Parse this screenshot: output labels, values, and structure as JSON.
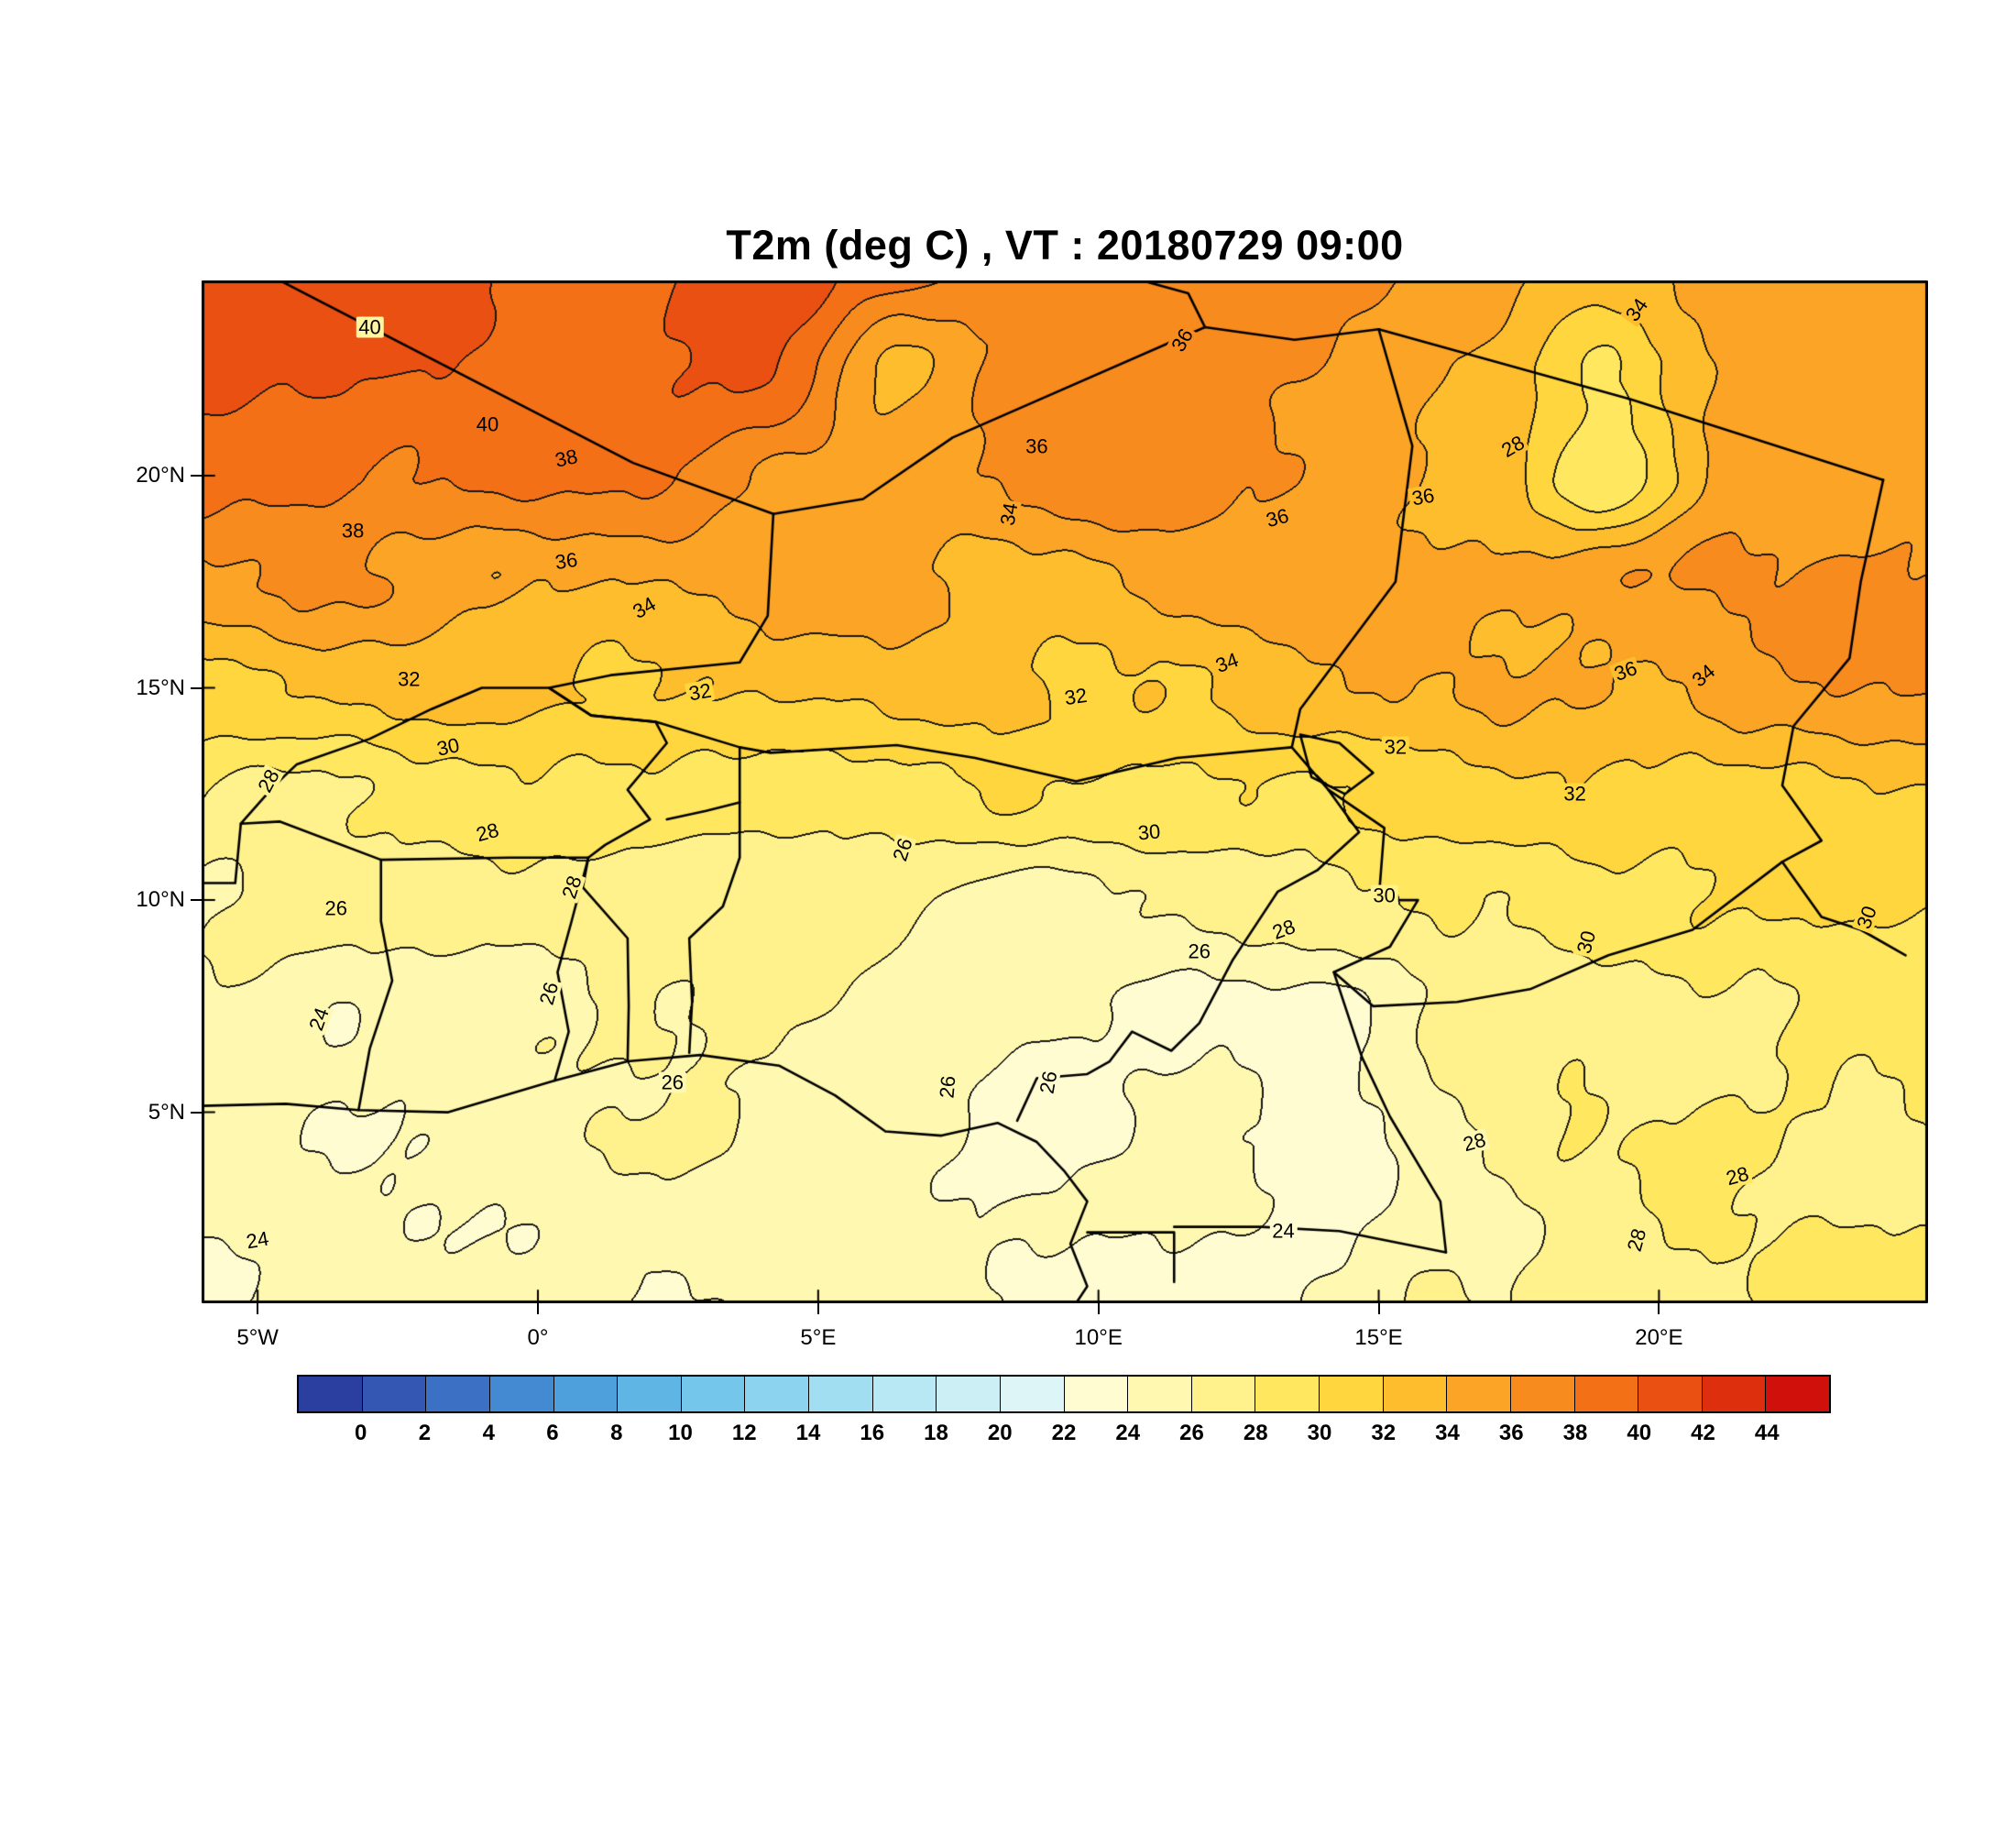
{
  "title": "T2m (deg C) ,  VT : 20180729  09:00",
  "page_background": "#ffffff",
  "map": {
    "frame_color": "#000000",
    "lat_ticks": [
      {
        "label": "5°N",
        "value": 5
      },
      {
        "label": "10°N",
        "value": 10
      },
      {
        "label": "15°N",
        "value": 15
      },
      {
        "label": "20°N",
        "value": 20
      }
    ],
    "lon_ticks": [
      {
        "label": "5°W",
        "value": -5
      },
      {
        "label": "0°",
        "value": 0
      },
      {
        "label": "5°E",
        "value": 5
      },
      {
        "label": "10°E",
        "value": 10
      },
      {
        "label": "15°E",
        "value": 15
      },
      {
        "label": "20°E",
        "value": 20
      }
    ],
    "borders": [
      {
        "name": "coastline-gulf-of-guinea",
        "points": [
          [
            -6,
            5.15
          ],
          [
            -4.5,
            5.2
          ],
          [
            -3.2,
            5.05
          ],
          [
            -1.6,
            5.0
          ],
          [
            0.3,
            5.75
          ],
          [
            1.6,
            6.2
          ],
          [
            2.9,
            6.35
          ],
          [
            4.3,
            6.1
          ],
          [
            5.3,
            5.4
          ],
          [
            6.2,
            4.55
          ],
          [
            7.2,
            4.45
          ],
          [
            8.2,
            4.75
          ],
          [
            8.9,
            4.3
          ],
          [
            9.4,
            3.6
          ],
          [
            9.8,
            2.9
          ],
          [
            9.5,
            1.9
          ],
          [
            9.8,
            0.9
          ],
          [
            9.6,
            0.5
          ]
        ]
      },
      {
        "name": "algeria-mali",
        "points": [
          [
            -4.9,
            24.8
          ],
          [
            1.7,
            20.3
          ],
          [
            4.2,
            19.1
          ]
        ]
      },
      {
        "name": "algeria-niger",
        "points": [
          [
            4.2,
            19.1
          ],
          [
            5.8,
            19.45
          ],
          [
            7.4,
            20.9
          ],
          [
            11.9,
            23.5
          ]
        ]
      },
      {
        "name": "niger-libya",
        "points": [
          [
            11.9,
            23.5
          ],
          [
            13.5,
            23.2
          ],
          [
            15.0,
            23.45
          ]
        ]
      },
      {
        "name": "algeria-libya",
        "points": [
          [
            9.8,
            24.95
          ],
          [
            11.6,
            24.3
          ],
          [
            11.9,
            23.5
          ]
        ]
      },
      {
        "name": "libya-chad",
        "points": [
          [
            15.0,
            23.45
          ],
          [
            19.5,
            21.8
          ],
          [
            24.0,
            19.9
          ]
        ]
      },
      {
        "name": "niger-chad",
        "points": [
          [
            15.0,
            23.45
          ],
          [
            15.6,
            20.7
          ],
          [
            15.3,
            17.5
          ],
          [
            13.6,
            14.5
          ],
          [
            13.45,
            13.6
          ]
        ]
      },
      {
        "name": "mali-niger",
        "points": [
          [
            4.2,
            19.1
          ],
          [
            4.1,
            16.7
          ],
          [
            3.6,
            15.6
          ],
          [
            1.3,
            15.3
          ],
          [
            0.2,
            15.0
          ],
          [
            0.95,
            14.35
          ]
        ]
      },
      {
        "name": "niger-nigeria",
        "points": [
          [
            0.95,
            14.35
          ],
          [
            2.1,
            14.2
          ],
          [
            3.6,
            13.6
          ],
          [
            4.15,
            13.47
          ],
          [
            6.4,
            13.65
          ],
          [
            7.8,
            13.35
          ],
          [
            9.6,
            12.8
          ],
          [
            11.4,
            13.35
          ],
          [
            13.45,
            13.6
          ]
        ]
      },
      {
        "name": "nigeria-cameroon",
        "points": [
          [
            14.1,
            12.6
          ],
          [
            14.65,
            11.6
          ],
          [
            13.9,
            10.7
          ],
          [
            13.2,
            10.2
          ],
          [
            12.8,
            9.4
          ],
          [
            12.4,
            8.6
          ],
          [
            11.8,
            7.1
          ],
          [
            11.3,
            6.45
          ],
          [
            10.6,
            6.9
          ],
          [
            10.2,
            6.2
          ],
          [
            9.8,
            5.9
          ],
          [
            8.9,
            5.8
          ],
          [
            8.55,
            4.8
          ]
        ]
      },
      {
        "name": "lake-chad",
        "points": [
          [
            13.6,
            13.9
          ],
          [
            14.3,
            13.7
          ],
          [
            14.9,
            13.0
          ],
          [
            14.4,
            12.5
          ],
          [
            13.8,
            12.9
          ],
          [
            13.6,
            13.9
          ]
        ]
      },
      {
        "name": "chad-southern",
        "points": [
          [
            13.45,
            13.6
          ],
          [
            14.1,
            12.6
          ],
          [
            15.1,
            11.7
          ],
          [
            15.0,
            10.0
          ],
          [
            15.7,
            10.0
          ],
          [
            15.2,
            8.9
          ],
          [
            14.2,
            8.3
          ],
          [
            14.9,
            7.5
          ],
          [
            16.4,
            7.6
          ],
          [
            17.7,
            7.9
          ],
          [
            19.1,
            8.7
          ],
          [
            20.6,
            9.3
          ],
          [
            22.2,
            10.9
          ]
        ]
      },
      {
        "name": "cameroon-car",
        "points": [
          [
            14.2,
            8.3
          ],
          [
            14.7,
            6.3
          ],
          [
            15.2,
            4.9
          ],
          [
            16.1,
            2.9
          ],
          [
            16.2,
            1.7
          ]
        ]
      },
      {
        "name": "chad-sudan",
        "points": [
          [
            24.0,
            19.9
          ],
          [
            23.6,
            17.5
          ],
          [
            23.4,
            15.7
          ],
          [
            22.4,
            14.1
          ],
          [
            22.2,
            12.7
          ],
          [
            22.9,
            11.4
          ],
          [
            22.2,
            10.9
          ]
        ]
      },
      {
        "name": "sudan-car",
        "points": [
          [
            22.2,
            10.9
          ],
          [
            22.9,
            9.6
          ],
          [
            23.6,
            9.3
          ],
          [
            24.4,
            8.7
          ]
        ]
      },
      {
        "name": "burkina-faso",
        "points": [
          [
            -5.3,
            11.8
          ],
          [
            -4.7,
            12.7
          ],
          [
            -4.3,
            13.2
          ],
          [
            -3.0,
            13.8
          ],
          [
            -1.9,
            14.5
          ],
          [
            -1.0,
            15.0
          ],
          [
            0.2,
            15.0
          ],
          [
            0.95,
            14.35
          ],
          [
            2.1,
            14.2
          ],
          [
            2.3,
            13.7
          ],
          [
            1.6,
            12.6
          ],
          [
            2.0,
            11.9
          ],
          [
            1.2,
            11.3
          ],
          [
            0.9,
            11.0
          ],
          [
            -0.5,
            11.0
          ],
          [
            -2.8,
            10.95
          ],
          [
            -4.6,
            11.85
          ],
          [
            -5.3,
            11.8
          ]
        ]
      },
      {
        "name": "cotedivoire-ghana",
        "points": [
          [
            -3.2,
            5.05
          ],
          [
            -3.0,
            6.5
          ],
          [
            -2.6,
            8.1
          ],
          [
            -2.8,
            9.5
          ],
          [
            -2.8,
            10.95
          ]
        ]
      },
      {
        "name": "ghana-togo",
        "points": [
          [
            0.3,
            5.75
          ],
          [
            0.55,
            6.9
          ],
          [
            0.35,
            8.3
          ],
          [
            0.6,
            9.5
          ],
          [
            0.9,
            11.0
          ]
        ]
      },
      {
        "name": "togo-benin",
        "points": [
          [
            1.6,
            6.2
          ],
          [
            1.62,
            7.5
          ],
          [
            1.6,
            9.1
          ],
          [
            0.8,
            10.3
          ],
          [
            0.9,
            11.0
          ]
        ]
      },
      {
        "name": "benin-nigeria",
        "points": [
          [
            2.7,
            6.4
          ],
          [
            2.75,
            7.6
          ],
          [
            2.7,
            9.1
          ],
          [
            3.3,
            9.85
          ],
          [
            3.6,
            11.0
          ],
          [
            3.6,
            12.3
          ],
          [
            3.6,
            13.6
          ]
        ]
      },
      {
        "name": "niger-benin",
        "points": [
          [
            2.3,
            11.9
          ],
          [
            3.0,
            12.1
          ],
          [
            3.6,
            12.3
          ]
        ]
      },
      {
        "name": "mali-cotedivoire",
        "points": [
          [
            -6,
            10.4
          ],
          [
            -5.4,
            10.4
          ],
          [
            -5.3,
            11.8
          ]
        ]
      },
      {
        "name": "cameroon-gabon",
        "points": [
          [
            9.8,
            2.17
          ],
          [
            11.35,
            2.17
          ],
          [
            11.35,
            1.0
          ]
        ]
      },
      {
        "name": "cameroon-congo",
        "points": [
          [
            11.35,
            2.3
          ],
          [
            12.9,
            2.3
          ],
          [
            14.3,
            2.2
          ],
          [
            16.2,
            1.7
          ]
        ]
      }
    ]
  },
  "colorbar": {
    "tick_labels": [
      "0",
      "2",
      "4",
      "6",
      "8",
      "10",
      "12",
      "14",
      "16",
      "18",
      "20",
      "22",
      "24",
      "26",
      "28",
      "30",
      "32",
      "34",
      "36",
      "38",
      "40",
      "42",
      "44"
    ],
    "colors": [
      "#2a3f9f",
      "#3357b2",
      "#3b70c4",
      "#438ad3",
      "#4ea0dc",
      "#5fb5e4",
      "#74c6ea",
      "#8bd3ee",
      "#a2def1",
      "#b8e8f4",
      "#cceff6",
      "#def5f8",
      "#fffcd2",
      "#fff8b0",
      "#fff18c",
      "#ffe760",
      "#ffd63e",
      "#fdbd2d",
      "#fba425",
      "#f88b1e",
      "#f37017",
      "#ea5012",
      "#dd2f0e",
      "#cf100b"
    ]
  },
  "contour_labels": [
    {
      "v": "40",
      "lon": -3.0,
      "lat": 23.5,
      "rot": 0
    },
    {
      "v": "40",
      "lon": -0.9,
      "lat": 21.2,
      "rot": 0
    },
    {
      "v": "38",
      "lon": 0.5,
      "lat": 20.4,
      "rot": -12
    },
    {
      "v": "38",
      "lon": -3.3,
      "lat": 18.7,
      "rot": 0
    },
    {
      "v": "36",
      "lon": 0.5,
      "lat": 18.0,
      "rot": -8
    },
    {
      "v": "34",
      "lon": 1.9,
      "lat": 16.9,
      "rot": -30
    },
    {
      "v": "32",
      "lon": -2.3,
      "lat": 15.2,
      "rot": 0
    },
    {
      "v": "32",
      "lon": 2.9,
      "lat": 14.9,
      "rot": -10
    },
    {
      "v": "30",
      "lon": -1.6,
      "lat": 13.6,
      "rot": -12
    },
    {
      "v": "28",
      "lon": -4.8,
      "lat": 12.8,
      "rot": -62
    },
    {
      "v": "28",
      "lon": -0.9,
      "lat": 11.6,
      "rot": -15
    },
    {
      "v": "28",
      "lon": 0.6,
      "lat": 10.3,
      "rot": -72
    },
    {
      "v": "26",
      "lon": -3.6,
      "lat": 9.8,
      "rot": 0
    },
    {
      "v": "26",
      "lon": 0.2,
      "lat": 7.8,
      "rot": -75
    },
    {
      "v": "26",
      "lon": 2.4,
      "lat": 5.7,
      "rot": 0
    },
    {
      "v": "24",
      "lon": -3.9,
      "lat": 7.2,
      "rot": -70
    },
    {
      "v": "24",
      "lon": -5.0,
      "lat": 2.0,
      "rot": -10
    },
    {
      "v": "36",
      "lon": 8.9,
      "lat": 20.7,
      "rot": 0
    },
    {
      "v": "34",
      "lon": 8.4,
      "lat": 19.1,
      "rot": -80
    },
    {
      "v": "36",
      "lon": 11.5,
      "lat": 23.2,
      "rot": -60
    },
    {
      "v": "36",
      "lon": 13.2,
      "lat": 19.0,
      "rot": -15
    },
    {
      "v": "36",
      "lon": 15.8,
      "lat": 19.5,
      "rot": -10
    },
    {
      "v": "28",
      "lon": 17.4,
      "lat": 20.7,
      "rot": -30
    },
    {
      "v": "34",
      "lon": 19.6,
      "lat": 23.9,
      "rot": -55
    },
    {
      "v": "34",
      "lon": 12.3,
      "lat": 15.6,
      "rot": -20
    },
    {
      "v": "32",
      "lon": 9.6,
      "lat": 14.8,
      "rot": -8
    },
    {
      "v": "32",
      "lon": 15.3,
      "lat": 13.6,
      "rot": 0
    },
    {
      "v": "30",
      "lon": 10.9,
      "lat": 11.6,
      "rot": -5
    },
    {
      "v": "30",
      "lon": 15.1,
      "lat": 10.1,
      "rot": 0
    },
    {
      "v": "26",
      "lon": 6.5,
      "lat": 11.2,
      "rot": -72
    },
    {
      "v": "28",
      "lon": 13.3,
      "lat": 9.3,
      "rot": -20
    },
    {
      "v": "26",
      "lon": 11.8,
      "lat": 8.8,
      "rot": 0
    },
    {
      "v": "26",
      "lon": 7.3,
      "lat": 5.6,
      "rot": -85
    },
    {
      "v": "26",
      "lon": 9.1,
      "lat": 5.7,
      "rot": -80
    },
    {
      "v": "24",
      "lon": 13.3,
      "lat": 2.2,
      "rot": 0
    },
    {
      "v": "36",
      "lon": 19.4,
      "lat": 15.4,
      "rot": -20
    },
    {
      "v": "34",
      "lon": 20.8,
      "lat": 15.3,
      "rot": -40
    },
    {
      "v": "32",
      "lon": 18.5,
      "lat": 12.5,
      "rot": 0
    },
    {
      "v": "30",
      "lon": 18.7,
      "lat": 9.0,
      "rot": -75
    },
    {
      "v": "30",
      "lon": 23.7,
      "lat": 9.6,
      "rot": -70
    },
    {
      "v": "28",
      "lon": 16.7,
      "lat": 4.3,
      "rot": -15
    },
    {
      "v": "28",
      "lon": 21.4,
      "lat": 3.5,
      "rot": -15
    },
    {
      "v": "28",
      "lon": 19.6,
      "lat": 2.0,
      "rot": -75
    }
  ],
  "chart_data": {
    "type": "heatmap",
    "style": "filled-contour-map",
    "title": "T2m (deg C) ,  VT : 20180729  09:00",
    "variable": "T2m",
    "units": "deg C",
    "valid_time": "20180729 09:00",
    "legend_position": "bottom",
    "lon_range": [
      -6.0,
      24.8
    ],
    "lat_range": [
      0.5,
      24.6
    ],
    "contour_interval": 2,
    "levels": [
      0,
      2,
      4,
      6,
      8,
      10,
      12,
      14,
      16,
      18,
      20,
      22,
      24,
      26,
      28,
      30,
      32,
      34,
      36,
      38,
      40,
      42,
      44
    ],
    "grid": {
      "order": "values[lat_index][lon_index], lat ascending south to north",
      "lon": [
        -6,
        -3.5,
        -1,
        1.5,
        4,
        6.5,
        9,
        11.5,
        14,
        16.5,
        19,
        21.5,
        24
      ],
      "lat": [
        0,
        2.5,
        5,
        7.5,
        10,
        12.5,
        15,
        17.5,
        20,
        22.5,
        25
      ],
      "values": [
        [
          24.2,
          24.3,
          24.5,
          24.5,
          24.6,
          24.8,
          24.2,
          23.2,
          23.4,
          26.2,
          27.0,
          28.2,
          28.6
        ],
        [
          24.3,
          24.4,
          24.6,
          24.8,
          25.0,
          25.2,
          24.4,
          23.8,
          23.6,
          26.0,
          27.2,
          27.8,
          28.2
        ],
        [
          24.8,
          24.6,
          25.0,
          25.6,
          25.4,
          25.6,
          21.5,
          24.2,
          24.0,
          26.2,
          27.4,
          28.0,
          28.4
        ],
        [
          25.2,
          24.0,
          25.8,
          26.0,
          25.8,
          25.4,
          25.0,
          23.0,
          23.5,
          26.8,
          27.2,
          27.8,
          28.8
        ],
        [
          26.4,
          26.4,
          27.2,
          27.6,
          26.6,
          26.2,
          25.2,
          26.6,
          27.0,
          28.6,
          29.6,
          29.8,
          30.2
        ],
        [
          28.2,
          28.4,
          28.8,
          29.2,
          29.4,
          29.2,
          29.6,
          29.8,
          30.2,
          30.9,
          31.6,
          31.2,
          31.8
        ],
        [
          31.6,
          32.2,
          32.0,
          32.4,
          32.2,
          32.0,
          32.2,
          32.6,
          33.2,
          33.4,
          34.5,
          35.2,
          35.6
        ],
        [
          35.5,
          35.5,
          35.0,
          34.2,
          34.4,
          34.6,
          33.6,
          34.6,
          35.0,
          34.8,
          35.6,
          36.2,
          36.4
        ],
        [
          38.4,
          38.8,
          38.6,
          37.6,
          36.4,
          36.2,
          36.4,
          36.6,
          36.4,
          34.0,
          27.5,
          35.2,
          35.6
        ],
        [
          40.2,
          40.6,
          40.0,
          39.2,
          40.0,
          34.0,
          37.2,
          36.6,
          36.0,
          34.0,
          29.5,
          34.6,
          35.0
        ],
        [
          41.0,
          41.2,
          40.6,
          40.2,
          40.6,
          38.0,
          37.6,
          37.0,
          36.4,
          35.4,
          34.0,
          34.6,
          35.0
        ]
      ]
    }
  }
}
